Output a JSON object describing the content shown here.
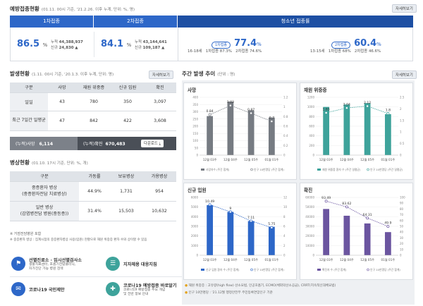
{
  "vaccination": {
    "title": "예방접종현황",
    "sub": "(01.11. 00시 기준, '21.2.26. 이후 누계, 단위: %, 명)",
    "detail": "자세히보기",
    "tab1": "1차접종",
    "tab2": "2차접종",
    "tab3": "청소년 접종률",
    "d1_pct": "86.5",
    "d1_pct_unit": "%",
    "d1_cum_label": "누적",
    "d1_cum": "44,388,937",
    "d1_new_label": "신규",
    "d1_new": "24,830 ▲",
    "d2_pct": "84.1",
    "d2_pct_unit": "%",
    "d2_cum_label": "누적",
    "d2_cum": "43,144,641",
    "d2_new_label": "신규",
    "d2_new": "109,187 ▲",
    "y1_pill": "1차접종",
    "y1_pct": "77.4",
    "y1_unit": "%",
    "y1_age": "16-18세",
    "y1_a": "1차접종 87.3%",
    "y1_b": "2차접종 74.6%",
    "y2_pill": "2차접종",
    "y2_pct": "60.4",
    "y2_unit": "%",
    "y2_age": "13-15세",
    "y2_a": "1차접종 68%",
    "y2_b": "2차접종 46.6%"
  },
  "outbreak": {
    "title": "발생현황",
    "sub": "(1.11. 00시 기준, '20.1.3. 이후 누계, 단위: 명)",
    "detail": "자세히보기",
    "headers": [
      "구분",
      "사망",
      "재원 위중증",
      "신규 입원",
      "확진"
    ],
    "rows": [
      [
        "일일",
        "43",
        "780",
        "350",
        "3,097"
      ],
      [
        "최근 7일간 일평균",
        "47",
        "842",
        "422",
        "3,608"
      ]
    ],
    "cum_death_label": "(누적)사망",
    "cum_death": "6,114",
    "cum_conf_label": "(누적)확진",
    "cum_conf": "670,483",
    "download": "다운로드 ⤓"
  },
  "beds": {
    "title": "병상현황",
    "sub": "(01.10. 17시 기준, 단위: %, 개)",
    "headers": [
      "구분",
      "가동률",
      "보유병상",
      "가용병상"
    ],
    "rows": [
      [
        "중증환자 병상",
        "(중증환자전담 치료병상)",
        "44.9%",
        "1,731",
        "954"
      ],
      [
        "일반 병상",
        "(감염병전담 병원(중등증))",
        "31.4%",
        "15,503",
        "10,632"
      ]
    ],
    "note1": "※ 거점전담병원 포함",
    "note2": "※ 중증환자 병상 : 집계시점의 중증환자병상 사용(입원) 현황으로 재원 위중증 환자 수와 상이할 수 있음"
  },
  "links": [
    {
      "t1": "선별진료소 · 임시선별검사소",
      "t2": "생활치료센터, 호흡기전담클리닉,",
      "t3": "자가진단 가능 병원 검색",
      "color": "#2d67c8",
      "glyph": "⚑"
    },
    {
      "t1": "지자체용 대응지침",
      "t2": "",
      "t3": "",
      "color": "#3ea39b",
      "glyph": "☰"
    },
    {
      "t1": "코로나19 국민제안",
      "t2": "",
      "t3": "",
      "color": "#2d67c8",
      "glyph": "✉"
    },
    {
      "t1": "코로나19 예방접종 바로알기",
      "t2": "코로나19 예방접종 주요 개념",
      "t3": "및 전반 정보 안내",
      "color": "#3ea39b",
      "glyph": "✚"
    }
  ],
  "weekly": {
    "title": "주간 발생 추이",
    "sub": "(단위 : 명)",
    "detail": "자세히보기",
    "note1": "재원 위중증 : 고유량(high flow) 산소요법, 인공호흡기, ECMO(체외막산소공급), CRRT(지속적신대체요법)",
    "note2": "인구 10만명당 : '21.12월 행정안전부 주민등록연앙인구 기준"
  },
  "chart_data": [
    {
      "type": "bar",
      "title": "사망",
      "categories": [
        "12월 03주",
        "12월 04주",
        "12월 05주",
        "01월 01주"
      ],
      "bar_values": [
        270,
        370,
        310,
        260
      ],
      "line_values": [
        0.84,
        1.03,
        0.87,
        0.7
      ],
      "legend": [
        "사망자수 (주간 합계)",
        "인구 10만명당 (주간 합계)"
      ],
      "y_left": {
        "min": 0,
        "max": 400,
        "ticks": [
          0,
          50,
          100,
          150,
          200,
          250,
          300,
          350,
          400
        ]
      },
      "y_right": {
        "min": 0,
        "max": 1.2,
        "ticks": [
          0,
          0.2,
          0.4,
          0.6,
          0.8,
          1,
          1.2
        ],
        "labels": [
          "0",
          "0.2",
          "0.4",
          "0.6",
          "0.8",
          "1",
          "1.2"
        ]
      },
      "bar_color": "#767b82",
      "line_color": "#767b82"
    },
    {
      "type": "bar",
      "title": "재원 위중증",
      "categories": [
        "12월 03주",
        "12월 04주",
        "12월 05주",
        "01월 01주"
      ],
      "bar_values": [
        1000,
        1050,
        1080,
        850
      ],
      "line_values": [
        1.83,
        2.04,
        2.12,
        1.8
      ],
      "legend": [
        "재원 위중증 환자 수 (주간 일평균)",
        "인구 10만명당 (주간 일평균)"
      ],
      "y_left": {
        "min": 0,
        "max": 1200,
        "ticks": [
          0,
          200,
          400,
          600,
          800,
          1000,
          1200
        ]
      },
      "y_right": {
        "min": 0,
        "max": 2.5,
        "ticks": [
          0,
          0.5,
          1,
          1.5,
          2,
          2.5
        ],
        "labels": [
          "0",
          "0.5",
          "1",
          "1.5",
          "2",
          "2.5"
        ]
      },
      "bar_color": "#3ea39b",
      "line_color": "#3ea39b"
    },
    {
      "type": "bar",
      "title": "신규 입원",
      "categories": [
        "12월 03주",
        "12월 04주",
        "12월 05주",
        "01월 01주"
      ],
      "bar_values": [
        5200,
        4500,
        3550,
        2950
      ],
      "line_values": [
        10.49,
        9,
        7.11,
        5.75
      ],
      "legend": [
        "신규 입원 환자 수 (주간 합계)",
        "인구 10만명당 (주간 합계)"
      ],
      "y_left": {
        "min": 0,
        "max": 6000,
        "ticks": [
          0,
          1000,
          2000,
          3000,
          4000,
          5000,
          6000
        ]
      },
      "y_right": {
        "min": 0,
        "max": 12,
        "ticks": [
          0,
          2,
          4,
          6,
          8,
          10,
          12
        ],
        "labels": [
          "0",
          "2",
          "4",
          "6",
          "8",
          "10",
          "12"
        ]
      },
      "bar_color": "#2d67c8",
      "line_color": "#2d67c8"
    },
    {
      "type": "bar",
      "title": "확진",
      "categories": [
        "12월 03주",
        "12월 04주",
        "12월 05주",
        "01월 01주"
      ],
      "bar_values": [
        48000,
        41000,
        33000,
        24000
      ],
      "line_values": [
        93.49,
        83.62,
        64.31,
        49.9
      ],
      "legend": [
        "확진자 수 (주간 합계)",
        "인구 10만명당 (주간 합계)"
      ],
      "y_left": {
        "min": 0,
        "max": 60000,
        "ticks": [
          0,
          10000,
          20000,
          30000,
          40000,
          50000,
          60000
        ]
      },
      "y_right": {
        "min": 0,
        "max": 100,
        "ticks": [
          0,
          10,
          20,
          30,
          40,
          50,
          60,
          70,
          80,
          90,
          100
        ],
        "labels": [
          "0",
          "10",
          "20",
          "30",
          "40",
          "50",
          "60",
          "70",
          "80",
          "90",
          "100"
        ]
      },
      "bar_color": "#6b55a0",
      "line_color": "#6b55a0"
    }
  ]
}
